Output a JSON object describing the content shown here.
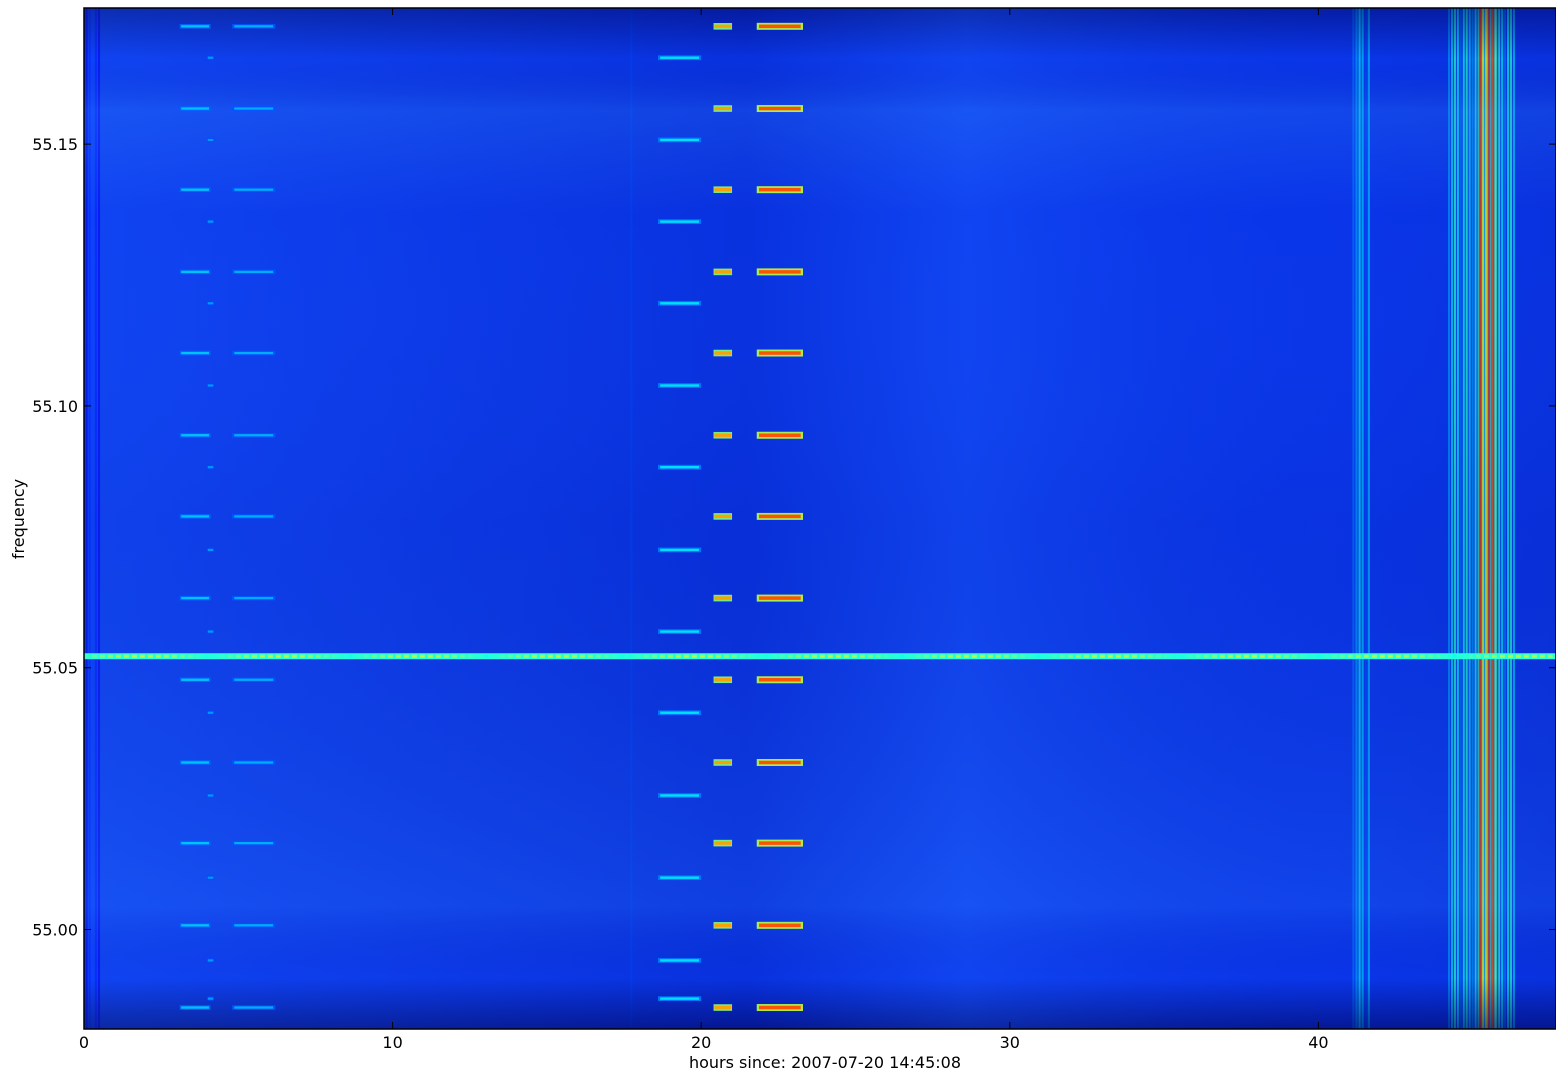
{
  "chart_data": {
    "type": "heatmap",
    "title": "",
    "xlabel": "hours since: 2007-07-20 14:45:08",
    "ylabel": "frequency",
    "xlim": [
      0,
      47.7
    ],
    "ylim": [
      54.981,
      55.176
    ],
    "xticks": [
      0,
      10,
      20,
      30,
      40
    ],
    "xtick_labels": [
      "0",
      "10",
      "20",
      "30",
      "40"
    ],
    "yticks": [
      55.0,
      55.05,
      55.1,
      55.15
    ],
    "ytick_labels": [
      "55.00",
      "55.05",
      "55.10",
      "55.15"
    ],
    "grid": false,
    "colormap": "jet",
    "background_color": "#0a38f0",
    "persistent_line": {
      "frequency": 55.0522,
      "hours": [
        0,
        47.7
      ],
      "intensity": 0.55
    },
    "comb_pattern": {
      "frequencies_strong": [
        55.1725,
        55.1568,
        55.1413,
        55.1256,
        55.1101,
        55.0944,
        55.0789,
        55.0633,
        55.0477,
        55.0319,
        55.0165,
        55.0008,
        54.9851
      ],
      "frequencies_offset": [
        55.1665,
        55.1508,
        55.1352,
        55.1196,
        55.1039,
        55.0883,
        55.0725,
        55.0569,
        55.0414,
        55.0256,
        55.0099,
        54.9941,
        54.9868
      ],
      "bursts": [
        {
          "hours": [
            3.1,
            4.1
          ],
          "intensity": 0.32,
          "set": "strong"
        },
        {
          "hours": [
            4.8,
            6.2
          ],
          "intensity": 0.3,
          "set": "strong"
        },
        {
          "hours": [
            4.0,
            4.2
          ],
          "intensity": 0.28,
          "set": "offset"
        },
        {
          "hours": [
            18.6,
            20.0
          ],
          "intensity": 0.35,
          "set": "offset"
        },
        {
          "hours": [
            20.4,
            21.0
          ],
          "intensity": 0.72,
          "set": "strong"
        },
        {
          "hours": [
            21.8,
            23.3
          ],
          "intensity": 0.8,
          "set": "strong"
        }
      ]
    },
    "broadband_bands": [
      {
        "hours": [
          41.1,
          41.7
        ],
        "intensity": 0.35
      },
      {
        "hours": [
          44.2,
          46.4
        ],
        "intensity": 0.42
      },
      {
        "hours": [
          45.2,
          45.8
        ],
        "intensity": 0.85
      },
      {
        "hours": [
          17.7,
          17.8
        ],
        "intensity": 0.2
      },
      {
        "hours": [
          0.05,
          0.55
        ],
        "intensity": 0.18
      }
    ]
  }
}
